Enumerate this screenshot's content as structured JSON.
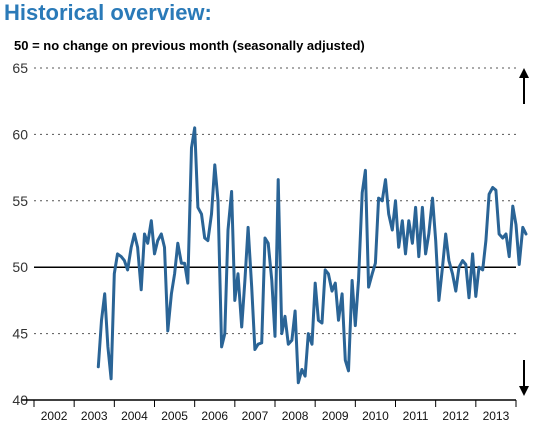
{
  "chart_data": {
    "type": "line",
    "title": "Historical overview:",
    "subtitle": "50 = no change on previous month (seasonally adjusted)",
    "xlabel": "",
    "ylabel": "",
    "ylim": [
      40,
      65
    ],
    "yticks": [
      40,
      45,
      50,
      55,
      60,
      65
    ],
    "xticks": [
      "2002",
      "2003",
      "2004",
      "2005",
      "2006",
      "2007",
      "2008",
      "2009",
      "2010",
      "2011",
      "2012",
      "2013"
    ],
    "xlim": [
      2002.0,
      2014.0
    ],
    "reference_line": 50,
    "grid": true,
    "line_color": "#2a6496",
    "series": [
      {
        "values": [
          [
            2003.6,
            42.5
          ],
          [
            2003.68,
            46.0
          ],
          [
            2003.76,
            48.0
          ],
          [
            2003.84,
            44.0
          ],
          [
            2003.92,
            41.6
          ],
          [
            2004.0,
            49.5
          ],
          [
            2004.08,
            51.0
          ],
          [
            2004.17,
            50.8
          ],
          [
            2004.25,
            50.5
          ],
          [
            2004.33,
            49.8
          ],
          [
            2004.42,
            51.5
          ],
          [
            2004.5,
            52.5
          ],
          [
            2004.58,
            51.5
          ],
          [
            2004.67,
            48.3
          ],
          [
            2004.75,
            52.5
          ],
          [
            2004.83,
            51.8
          ],
          [
            2004.92,
            53.5
          ],
          [
            2005.0,
            51.0
          ],
          [
            2005.08,
            52.0
          ],
          [
            2005.17,
            52.5
          ],
          [
            2005.25,
            51.5
          ],
          [
            2005.33,
            45.2
          ],
          [
            2005.42,
            48.0
          ],
          [
            2005.5,
            49.5
          ],
          [
            2005.58,
            51.8
          ],
          [
            2005.67,
            50.3
          ],
          [
            2005.75,
            50.3
          ],
          [
            2005.83,
            48.8
          ],
          [
            2005.92,
            59.0
          ],
          [
            2006.0,
            60.5
          ],
          [
            2006.08,
            54.5
          ],
          [
            2006.17,
            54.0
          ],
          [
            2006.25,
            52.2
          ],
          [
            2006.33,
            52.0
          ],
          [
            2006.42,
            54.0
          ],
          [
            2006.5,
            57.7
          ],
          [
            2006.58,
            55.0
          ],
          [
            2006.67,
            44.0
          ],
          [
            2006.75,
            45.0
          ],
          [
            2006.83,
            52.8
          ],
          [
            2006.92,
            55.7
          ],
          [
            2007.0,
            47.5
          ],
          [
            2007.08,
            49.5
          ],
          [
            2007.17,
            45.5
          ],
          [
            2007.25,
            49.0
          ],
          [
            2007.33,
            53.0
          ],
          [
            2007.42,
            48.5
          ],
          [
            2007.5,
            43.8
          ],
          [
            2007.58,
            44.2
          ],
          [
            2007.67,
            44.3
          ],
          [
            2007.75,
            52.2
          ],
          [
            2007.83,
            51.8
          ],
          [
            2007.92,
            49.0
          ],
          [
            2008.0,
            44.8
          ],
          [
            2008.08,
            56.6
          ],
          [
            2008.17,
            45.0
          ],
          [
            2008.25,
            46.3
          ],
          [
            2008.33,
            44.2
          ],
          [
            2008.42,
            44.5
          ],
          [
            2008.5,
            46.7
          ],
          [
            2008.58,
            41.3
          ],
          [
            2008.67,
            42.3
          ],
          [
            2008.75,
            41.8
          ],
          [
            2008.83,
            45.0
          ],
          [
            2008.92,
            44.2
          ],
          [
            2009.0,
            48.8
          ],
          [
            2009.08,
            46.0
          ],
          [
            2009.17,
            45.8
          ],
          [
            2009.25,
            49.8
          ],
          [
            2009.33,
            49.5
          ],
          [
            2009.42,
            48.2
          ],
          [
            2009.5,
            48.8
          ],
          [
            2009.58,
            46.0
          ],
          [
            2009.67,
            48.0
          ],
          [
            2009.75,
            43.0
          ],
          [
            2009.83,
            42.2
          ],
          [
            2009.92,
            49.0
          ],
          [
            2010.0,
            45.6
          ],
          [
            2010.08,
            49.0
          ],
          [
            2010.17,
            55.6
          ],
          [
            2010.25,
            57.3
          ],
          [
            2010.33,
            48.5
          ],
          [
            2010.42,
            49.5
          ],
          [
            2010.5,
            50.3
          ],
          [
            2010.58,
            55.2
          ],
          [
            2010.67,
            55.0
          ],
          [
            2010.75,
            56.6
          ],
          [
            2010.83,
            54.0
          ],
          [
            2010.92,
            52.8
          ],
          [
            2011.0,
            55.0
          ],
          [
            2011.08,
            51.5
          ],
          [
            2011.17,
            53.5
          ],
          [
            2011.25,
            51.0
          ],
          [
            2011.33,
            53.5
          ],
          [
            2011.42,
            51.8
          ],
          [
            2011.5,
            54.5
          ],
          [
            2011.58,
            50.8
          ],
          [
            2011.67,
            54.5
          ],
          [
            2011.75,
            51.0
          ],
          [
            2011.83,
            52.5
          ],
          [
            2011.92,
            55.2
          ],
          [
            2012.0,
            52.0
          ],
          [
            2012.08,
            47.5
          ],
          [
            2012.17,
            50.0
          ],
          [
            2012.25,
            52.5
          ],
          [
            2012.33,
            50.5
          ],
          [
            2012.42,
            49.5
          ],
          [
            2012.5,
            48.2
          ],
          [
            2012.58,
            50.0
          ],
          [
            2012.67,
            50.5
          ],
          [
            2012.75,
            50.2
          ],
          [
            2012.83,
            47.7
          ],
          [
            2012.92,
            51.0
          ],
          [
            2013.0,
            47.8
          ],
          [
            2013.08,
            50.0
          ],
          [
            2013.17,
            49.8
          ],
          [
            2013.25,
            52.0
          ],
          [
            2013.33,
            55.5
          ],
          [
            2013.42,
            56.0
          ],
          [
            2013.5,
            55.8
          ],
          [
            2013.58,
            52.5
          ],
          [
            2013.67,
            52.2
          ],
          [
            2013.75,
            52.5
          ],
          [
            2013.83,
            50.8
          ],
          [
            2013.92,
            54.6
          ],
          [
            2014.0,
            53.2
          ],
          [
            2014.08,
            50.2
          ],
          [
            2014.17,
            53.0
          ],
          [
            2014.25,
            52.5
          ]
        ]
      }
    ]
  }
}
